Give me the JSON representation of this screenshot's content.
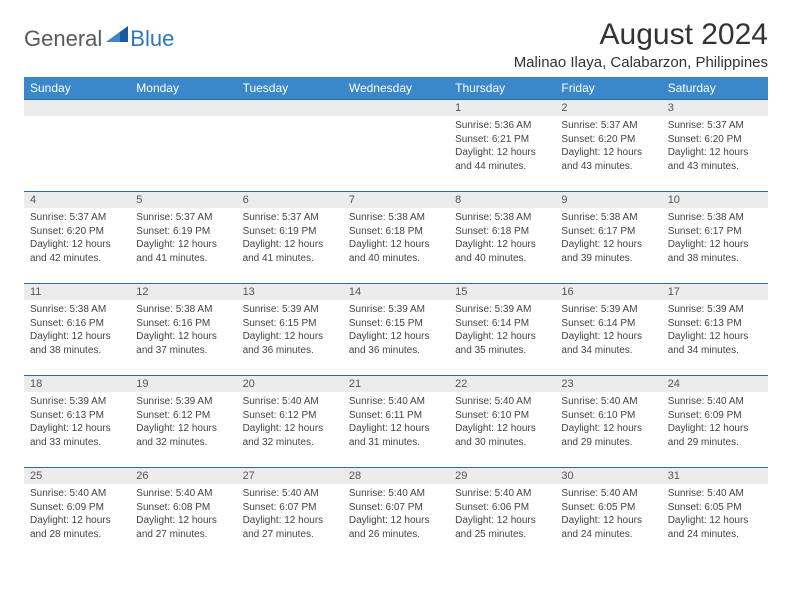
{
  "colors": {
    "header_bg": "#3a87c9",
    "header_text": "#ffffff",
    "border": "#2f6aa3",
    "daynum_bg": "#ececec",
    "daynum_text": "#555555",
    "body_text": "#444444",
    "logo_gray": "#5a5a5a",
    "logo_blue": "#2f78bf"
  },
  "logo": {
    "part1": "General",
    "part2": "Blue"
  },
  "title": "August 2024",
  "location": "Malinao Ilaya, Calabarzon, Philippines",
  "weekdays": [
    "Sunday",
    "Monday",
    "Tuesday",
    "Wednesday",
    "Thursday",
    "Friday",
    "Saturday"
  ],
  "weeks": [
    [
      {
        "n": "",
        "sr": "",
        "ss": "",
        "dl": ""
      },
      {
        "n": "",
        "sr": "",
        "ss": "",
        "dl": ""
      },
      {
        "n": "",
        "sr": "",
        "ss": "",
        "dl": ""
      },
      {
        "n": "",
        "sr": "",
        "ss": "",
        "dl": ""
      },
      {
        "n": "1",
        "sr": "Sunrise: 5:36 AM",
        "ss": "Sunset: 6:21 PM",
        "dl": "Daylight: 12 hours and 44 minutes."
      },
      {
        "n": "2",
        "sr": "Sunrise: 5:37 AM",
        "ss": "Sunset: 6:20 PM",
        "dl": "Daylight: 12 hours and 43 minutes."
      },
      {
        "n": "3",
        "sr": "Sunrise: 5:37 AM",
        "ss": "Sunset: 6:20 PM",
        "dl": "Daylight: 12 hours and 43 minutes."
      }
    ],
    [
      {
        "n": "4",
        "sr": "Sunrise: 5:37 AM",
        "ss": "Sunset: 6:20 PM",
        "dl": "Daylight: 12 hours and 42 minutes."
      },
      {
        "n": "5",
        "sr": "Sunrise: 5:37 AM",
        "ss": "Sunset: 6:19 PM",
        "dl": "Daylight: 12 hours and 41 minutes."
      },
      {
        "n": "6",
        "sr": "Sunrise: 5:37 AM",
        "ss": "Sunset: 6:19 PM",
        "dl": "Daylight: 12 hours and 41 minutes."
      },
      {
        "n": "7",
        "sr": "Sunrise: 5:38 AM",
        "ss": "Sunset: 6:18 PM",
        "dl": "Daylight: 12 hours and 40 minutes."
      },
      {
        "n": "8",
        "sr": "Sunrise: 5:38 AM",
        "ss": "Sunset: 6:18 PM",
        "dl": "Daylight: 12 hours and 40 minutes."
      },
      {
        "n": "9",
        "sr": "Sunrise: 5:38 AM",
        "ss": "Sunset: 6:17 PM",
        "dl": "Daylight: 12 hours and 39 minutes."
      },
      {
        "n": "10",
        "sr": "Sunrise: 5:38 AM",
        "ss": "Sunset: 6:17 PM",
        "dl": "Daylight: 12 hours and 38 minutes."
      }
    ],
    [
      {
        "n": "11",
        "sr": "Sunrise: 5:38 AM",
        "ss": "Sunset: 6:16 PM",
        "dl": "Daylight: 12 hours and 38 minutes."
      },
      {
        "n": "12",
        "sr": "Sunrise: 5:38 AM",
        "ss": "Sunset: 6:16 PM",
        "dl": "Daylight: 12 hours and 37 minutes."
      },
      {
        "n": "13",
        "sr": "Sunrise: 5:39 AM",
        "ss": "Sunset: 6:15 PM",
        "dl": "Daylight: 12 hours and 36 minutes."
      },
      {
        "n": "14",
        "sr": "Sunrise: 5:39 AM",
        "ss": "Sunset: 6:15 PM",
        "dl": "Daylight: 12 hours and 36 minutes."
      },
      {
        "n": "15",
        "sr": "Sunrise: 5:39 AM",
        "ss": "Sunset: 6:14 PM",
        "dl": "Daylight: 12 hours and 35 minutes."
      },
      {
        "n": "16",
        "sr": "Sunrise: 5:39 AM",
        "ss": "Sunset: 6:14 PM",
        "dl": "Daylight: 12 hours and 34 minutes."
      },
      {
        "n": "17",
        "sr": "Sunrise: 5:39 AM",
        "ss": "Sunset: 6:13 PM",
        "dl": "Daylight: 12 hours and 34 minutes."
      }
    ],
    [
      {
        "n": "18",
        "sr": "Sunrise: 5:39 AM",
        "ss": "Sunset: 6:13 PM",
        "dl": "Daylight: 12 hours and 33 minutes."
      },
      {
        "n": "19",
        "sr": "Sunrise: 5:39 AM",
        "ss": "Sunset: 6:12 PM",
        "dl": "Daylight: 12 hours and 32 minutes."
      },
      {
        "n": "20",
        "sr": "Sunrise: 5:40 AM",
        "ss": "Sunset: 6:12 PM",
        "dl": "Daylight: 12 hours and 32 minutes."
      },
      {
        "n": "21",
        "sr": "Sunrise: 5:40 AM",
        "ss": "Sunset: 6:11 PM",
        "dl": "Daylight: 12 hours and 31 minutes."
      },
      {
        "n": "22",
        "sr": "Sunrise: 5:40 AM",
        "ss": "Sunset: 6:10 PM",
        "dl": "Daylight: 12 hours and 30 minutes."
      },
      {
        "n": "23",
        "sr": "Sunrise: 5:40 AM",
        "ss": "Sunset: 6:10 PM",
        "dl": "Daylight: 12 hours and 29 minutes."
      },
      {
        "n": "24",
        "sr": "Sunrise: 5:40 AM",
        "ss": "Sunset: 6:09 PM",
        "dl": "Daylight: 12 hours and 29 minutes."
      }
    ],
    [
      {
        "n": "25",
        "sr": "Sunrise: 5:40 AM",
        "ss": "Sunset: 6:09 PM",
        "dl": "Daylight: 12 hours and 28 minutes."
      },
      {
        "n": "26",
        "sr": "Sunrise: 5:40 AM",
        "ss": "Sunset: 6:08 PM",
        "dl": "Daylight: 12 hours and 27 minutes."
      },
      {
        "n": "27",
        "sr": "Sunrise: 5:40 AM",
        "ss": "Sunset: 6:07 PM",
        "dl": "Daylight: 12 hours and 27 minutes."
      },
      {
        "n": "28",
        "sr": "Sunrise: 5:40 AM",
        "ss": "Sunset: 6:07 PM",
        "dl": "Daylight: 12 hours and 26 minutes."
      },
      {
        "n": "29",
        "sr": "Sunrise: 5:40 AM",
        "ss": "Sunset: 6:06 PM",
        "dl": "Daylight: 12 hours and 25 minutes."
      },
      {
        "n": "30",
        "sr": "Sunrise: 5:40 AM",
        "ss": "Sunset: 6:05 PM",
        "dl": "Daylight: 12 hours and 24 minutes."
      },
      {
        "n": "31",
        "sr": "Sunrise: 5:40 AM",
        "ss": "Sunset: 6:05 PM",
        "dl": "Daylight: 12 hours and 24 minutes."
      }
    ]
  ]
}
